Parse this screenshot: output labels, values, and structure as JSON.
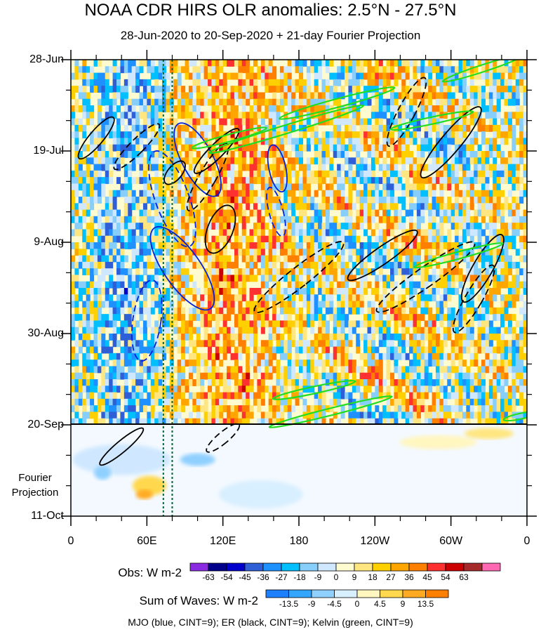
{
  "chart_data": {
    "type": "heatmap",
    "title": "NOAA CDR HIRS OLR anomalies: 2.5°N - 27.5°N",
    "subtitle": "28-Jun-2020 to 20-Sep-2020 + 21-day Fourier Projection",
    "y_ticks": [
      "28-Jun",
      "19-Jul",
      "9-Aug",
      "30-Aug",
      "20-Sep",
      "11-Oct"
    ],
    "x_ticks": [
      "0",
      "60E",
      "120E",
      "180",
      "120W",
      "60W",
      "0"
    ],
    "xlim": [
      0,
      360
    ],
    "ylim": [
      "28-Jun-2020",
      "11-Oct-2020"
    ],
    "projection_start": "20-Sep",
    "projection_label": "Fourier Projection",
    "obs_colorbar": {
      "title": "Obs: W m-2",
      "levels": [
        "-63",
        "-54",
        "-45",
        "-36",
        "-27",
        "-18",
        "-9",
        "0",
        "9",
        "18",
        "27",
        "36",
        "45",
        "54",
        "63"
      ],
      "colors": [
        "#8a2be2",
        "#00008b",
        "#0000cd",
        "#2e5fd6",
        "#1e90ff",
        "#00bfff",
        "#87cefa",
        "#cfe8ff",
        "#fffbd0",
        "#ffe680",
        "#ffd000",
        "#ffa500",
        "#ff7f00",
        "#ff3030",
        "#cc0000",
        "#a52a2a",
        "#ff69b4"
      ]
    },
    "waves_colorbar": {
      "title": "Sum of Waves: W m-2",
      "levels": [
        "-13.5",
        "-9",
        "-4.5",
        "0",
        "4.5",
        "9",
        "13.5"
      ],
      "colors": [
        "#1e7fff",
        "#33a7ff",
        "#8fd0ff",
        "#d8efff",
        "#fff6c0",
        "#ffd84d",
        "#ffaa22",
        "#ff7f00"
      ]
    },
    "footnote": "MJO (blue, CINT=9); ER (black, CINT=9); Kelvin (green, CINT=9)",
    "vertical_lines_lon": [
      73,
      80
    ]
  }
}
